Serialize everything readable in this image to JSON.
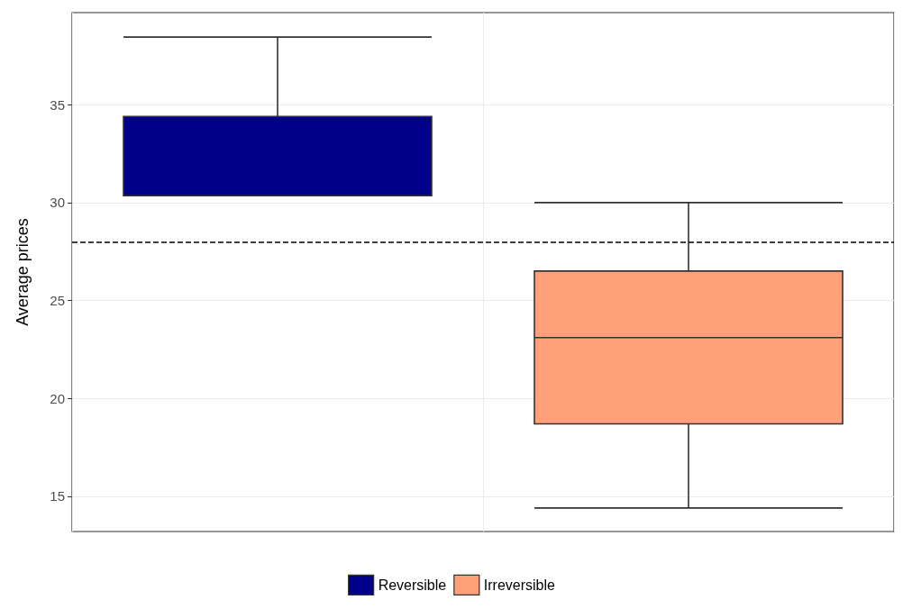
{
  "chart_data": {
    "type": "box",
    "ylabel": "Average prices",
    "categories": [
      null,
      null
    ],
    "series": [
      {
        "name": "Reversible",
        "color": "#00008b",
        "boxes": [
          {
            "low": 30.35,
            "q1": 30.35,
            "median": 30.35,
            "q3": 34.4,
            "high": 38.45
          },
          null
        ]
      },
      {
        "name": "Irreversible",
        "color": "#ffa07a",
        "boxes": [
          null,
          {
            "low": 14.4,
            "q1": 18.7,
            "median": 23.1,
            "q3": 26.5,
            "high": 30
          }
        ]
      }
    ],
    "ylim": [
      13.2,
      39.7
    ],
    "yticks": [
      15,
      20,
      25,
      30,
      35
    ],
    "grid": true,
    "legend": "bottom",
    "ref_lines": [
      {
        "axis": "y",
        "value": 28,
        "line_style": "dashed"
      }
    ]
  }
}
